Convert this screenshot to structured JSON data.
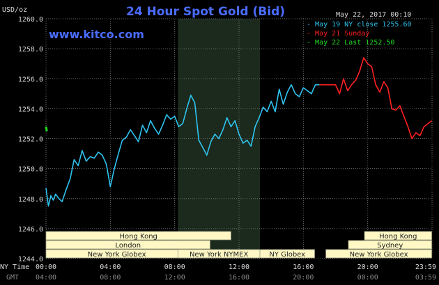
{
  "header": {
    "title": "24 Hour Spot Gold (Bid)",
    "y_unit": "USD/oz",
    "timestamp": "May 22, 2017 00:10",
    "website": "www.kitco.com"
  },
  "legend": [
    {
      "text": "May 19 NY close 1255.60",
      "color": "#2fc4f0"
    },
    {
      "text": "May 21 Sunday",
      "color": "#ff2020"
    },
    {
      "text": "May 22 Last 1252.50",
      "color": "#22dd22"
    }
  ],
  "colors": {
    "background": "#000000",
    "grid": "#6e6e6e",
    "text": "#d8d8d8",
    "title": "#4b6cff",
    "band_fill": "#fff8c4",
    "band_text": "#222222",
    "shade": "#1b2a1d"
  },
  "time_labels": {
    "row1_label": "NY Time",
    "row2_label": "GMT",
    "ny_ticks": [
      "00:00",
      "04:00",
      "08:00",
      "12:00",
      "16:00",
      "20:00",
      "23:59"
    ],
    "gmt_ticks": [
      "04:00",
      "08:00",
      "12:00",
      "16:00",
      "20:00",
      "00:00",
      "03:59"
    ]
  },
  "sessions": [
    {
      "label": "Hong Kong",
      "row": 0,
      "start": 0,
      "end": 11.5
    },
    {
      "label": "London",
      "row": 1,
      "start": 0,
      "end": 10.2
    },
    {
      "label": "New York Globex",
      "row": 2,
      "start": 0,
      "end": 8.8
    },
    {
      "label": "New York NYMEX",
      "row": 2,
      "start": 8.2,
      "end": 13.3
    },
    {
      "label": "NY Globex",
      "row": 2,
      "start": 13.3,
      "end": 16.7
    },
    {
      "label": "Hong Kong",
      "row": 0,
      "start": 19.8,
      "end": 23.98
    },
    {
      "label": "Sydney",
      "row": 1,
      "start": 18.8,
      "end": 23.98
    },
    {
      "label": "New York Globex",
      "row": 2,
      "start": 17.4,
      "end": 23.98
    }
  ],
  "chart_data": {
    "type": "line",
    "title": "24 Hour Spot Gold (Bid)",
    "ylabel": "USD/oz",
    "xlabel": "NY Time",
    "ylim": [
      1244.0,
      1260.0
    ],
    "xlim": [
      0,
      24
    ],
    "yticks": [
      "1244.0",
      "1246.0",
      "1248.0",
      "1250.0",
      "1252.0",
      "1254.0",
      "1256.0",
      "1258.0",
      "1260.0"
    ],
    "shaded_hours": [
      8.2,
      13.3
    ],
    "grid": true,
    "series": [
      {
        "name": "May 19 NY close 1255.60",
        "color": "#2fc4f0",
        "x": [
          0.0,
          0.15,
          0.3,
          0.45,
          0.6,
          0.8,
          1.0,
          1.25,
          1.5,
          1.75,
          2.0,
          2.25,
          2.5,
          2.75,
          3.0,
          3.25,
          3.5,
          3.75,
          4.0,
          4.25,
          4.5,
          4.75,
          5.0,
          5.25,
          5.5,
          5.75,
          6.0,
          6.25,
          6.5,
          6.75,
          7.0,
          7.25,
          7.5,
          7.75,
          8.0,
          8.25,
          8.5,
          8.75,
          9.0,
          9.25,
          9.5,
          9.75,
          10.0,
          10.25,
          10.5,
          10.75,
          11.0,
          11.25,
          11.5,
          11.75,
          12.0,
          12.25,
          12.5,
          12.75,
          13.0,
          13.25,
          13.5,
          13.75,
          14.0,
          14.25,
          14.5,
          14.75,
          15.0,
          15.25,
          15.5,
          15.75,
          16.0,
          16.25,
          16.5,
          16.75,
          17.0
        ],
        "values": [
          1248.7,
          1247.5,
          1248.2,
          1247.9,
          1248.3,
          1248.0,
          1247.8,
          1248.6,
          1249.3,
          1250.6,
          1250.2,
          1251.2,
          1250.5,
          1250.8,
          1250.7,
          1251.1,
          1250.9,
          1250.3,
          1248.8,
          1250.0,
          1251.0,
          1251.9,
          1252.1,
          1252.6,
          1252.2,
          1251.8,
          1252.9,
          1252.4,
          1253.2,
          1252.7,
          1252.3,
          1252.9,
          1253.6,
          1253.3,
          1253.5,
          1252.8,
          1253.0,
          1254.0,
          1254.9,
          1254.4,
          1251.9,
          1251.4,
          1250.9,
          1251.8,
          1252.3,
          1252.0,
          1252.6,
          1253.4,
          1252.8,
          1253.2,
          1252.3,
          1251.7,
          1251.9,
          1251.5,
          1252.8,
          1253.4,
          1254.1,
          1253.8,
          1254.5,
          1253.8,
          1255.3,
          1254.3,
          1255.1,
          1255.6,
          1255.0,
          1254.8,
          1255.4,
          1255.2,
          1255.0,
          1255.6,
          1255.6
        ]
      },
      {
        "name": "May 21 Sunday",
        "color": "#ff2020",
        "x": [
          17.0,
          17.5,
          18.0,
          18.25,
          18.5,
          18.75,
          19.0,
          19.25,
          19.5,
          19.75,
          20.0,
          20.25,
          20.5,
          20.75,
          21.0,
          21.25,
          21.5,
          21.75,
          22.0,
          22.25,
          22.5,
          22.75,
          23.0,
          23.25,
          23.5,
          23.75,
          23.98
        ],
        "values": [
          1255.6,
          1255.6,
          1255.6,
          1255.0,
          1256.0,
          1255.2,
          1255.6,
          1255.9,
          1256.5,
          1257.4,
          1257.0,
          1256.8,
          1255.6,
          1255.1,
          1255.8,
          1255.4,
          1254.0,
          1253.9,
          1254.2,
          1253.5,
          1252.8,
          1252.0,
          1252.4,
          1252.2,
          1252.8,
          1253.0,
          1253.2
        ]
      },
      {
        "name": "May 22 Last 1252.50",
        "color": "#22dd22",
        "x": [
          0.0,
          0.05
        ],
        "values": [
          1252.8,
          1252.5
        ]
      }
    ]
  }
}
